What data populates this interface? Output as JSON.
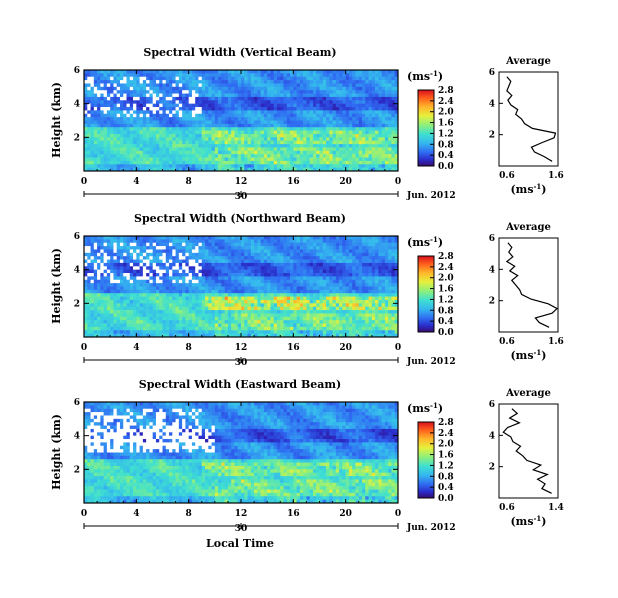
{
  "figure": {
    "date_label": "Jun. 2012",
    "day_label": "30",
    "xlabel_bottom": "Local Time",
    "cbar_unit": "(ms",
    "unit_exp": "-1",
    "unit_close": ")",
    "avg_title": "Average",
    "avg_unit": "(ms",
    "hole_color": "#ffffff"
  },
  "chart_data": [
    {
      "type": "heatmap",
      "title": "Spectral Width (Vertical Beam)",
      "ylabel": "Height (km)",
      "x_ticks": [
        "0",
        "4",
        "8",
        "12",
        "16",
        "20",
        "0"
      ],
      "xlim": [
        0,
        24
      ],
      "y_ticks": [
        "2",
        "4",
        "6"
      ],
      "ylim": [
        0,
        6
      ],
      "colorbar": {
        "ticks": [
          "0.0",
          "0.4",
          "0.8",
          "1.2",
          "1.6",
          "2.0",
          "2.4",
          "2.8"
        ],
        "range": [
          0,
          2.8
        ]
      },
      "average_profile": {
        "title": "Average",
        "xlabel": "(ms-1)",
        "x_ticks": [
          "0.6",
          "1.6"
        ],
        "xlim": [
          0.4,
          1.6
        ],
        "y_ticks": [
          "2",
          "4",
          "6"
        ],
        "ylim": [
          0,
          6
        ],
        "heights": [
          0.3,
          0.6,
          0.9,
          1.2,
          1.5,
          1.8,
          2.1,
          2.4,
          2.7,
          3.0,
          3.3,
          3.6,
          3.9,
          4.2,
          4.5,
          4.8,
          5.1,
          5.4,
          5.7
        ],
        "values": [
          1.48,
          1.32,
          1.12,
          1.06,
          1.28,
          1.52,
          1.55,
          1.08,
          0.92,
          0.86,
          0.74,
          0.78,
          0.64,
          0.58,
          0.66,
          0.56,
          0.6,
          0.64,
          0.56
        ]
      }
    },
    {
      "type": "heatmap",
      "title": "Spectral Width (Northward Beam)",
      "ylabel": "Height (km)",
      "x_ticks": [
        "0",
        "4",
        "8",
        "12",
        "16",
        "20",
        "0"
      ],
      "xlim": [
        0,
        24
      ],
      "y_ticks": [
        "2",
        "4",
        "6"
      ],
      "ylim": [
        0,
        6
      ],
      "colorbar": {
        "ticks": [
          "0.0",
          "0.4",
          "0.8",
          "1.2",
          "1.6",
          "2.0",
          "2.4",
          "2.8"
        ],
        "range": [
          0,
          2.8
        ]
      },
      "average_profile": {
        "title": "Average",
        "xlabel": "(ms-1)",
        "x_ticks": [
          "0.6",
          "1.6"
        ],
        "xlim": [
          0.4,
          1.6
        ],
        "y_ticks": [
          "2",
          "4",
          "6"
        ],
        "ylim": [
          0,
          6
        ],
        "heights": [
          0.3,
          0.6,
          0.9,
          1.2,
          1.5,
          1.8,
          2.1,
          2.4,
          2.7,
          3.0,
          3.3,
          3.6,
          3.9,
          4.2,
          4.5,
          4.8,
          5.1,
          5.4,
          5.7
        ],
        "values": [
          1.42,
          1.22,
          1.14,
          1.48,
          1.58,
          1.4,
          1.05,
          0.86,
          0.82,
          0.74,
          0.66,
          0.78,
          0.62,
          0.72,
          0.56,
          0.68,
          0.6,
          0.66,
          0.58
        ]
      }
    },
    {
      "type": "heatmap",
      "title": "Spectral Width (Eastward Beam)",
      "ylabel": "Height (km)",
      "x_ticks": [
        "0",
        "4",
        "8",
        "12",
        "16",
        "20",
        "0"
      ],
      "xlim": [
        0,
        24
      ],
      "y_ticks": [
        "2",
        "4",
        "6"
      ],
      "ylim": [
        0,
        6
      ],
      "colorbar": {
        "ticks": [
          "0.0",
          "0.4",
          "0.8",
          "1.2",
          "1.6",
          "2.0",
          "2.4",
          "2.8"
        ],
        "range": [
          0,
          2.8
        ]
      },
      "average_profile": {
        "title": "Average",
        "xlabel": "(ms-1)",
        "x_ticks": [
          "0.6",
          "1.4"
        ],
        "xlim": [
          0.4,
          1.5
        ],
        "y_ticks": [
          "2",
          "4",
          "6"
        ],
        "ylim": [
          0,
          6
        ],
        "heights": [
          0.3,
          0.6,
          0.9,
          1.2,
          1.5,
          1.8,
          2.1,
          2.4,
          2.7,
          3.0,
          3.3,
          3.6,
          3.9,
          4.2,
          4.5,
          4.8,
          5.1,
          5.4,
          5.7
        ],
        "values": [
          1.38,
          1.2,
          1.26,
          1.12,
          1.3,
          1.04,
          1.18,
          0.92,
          0.84,
          0.72,
          0.8,
          0.66,
          0.62,
          0.48,
          0.56,
          0.78,
          0.6,
          0.74,
          0.64
        ]
      }
    }
  ]
}
